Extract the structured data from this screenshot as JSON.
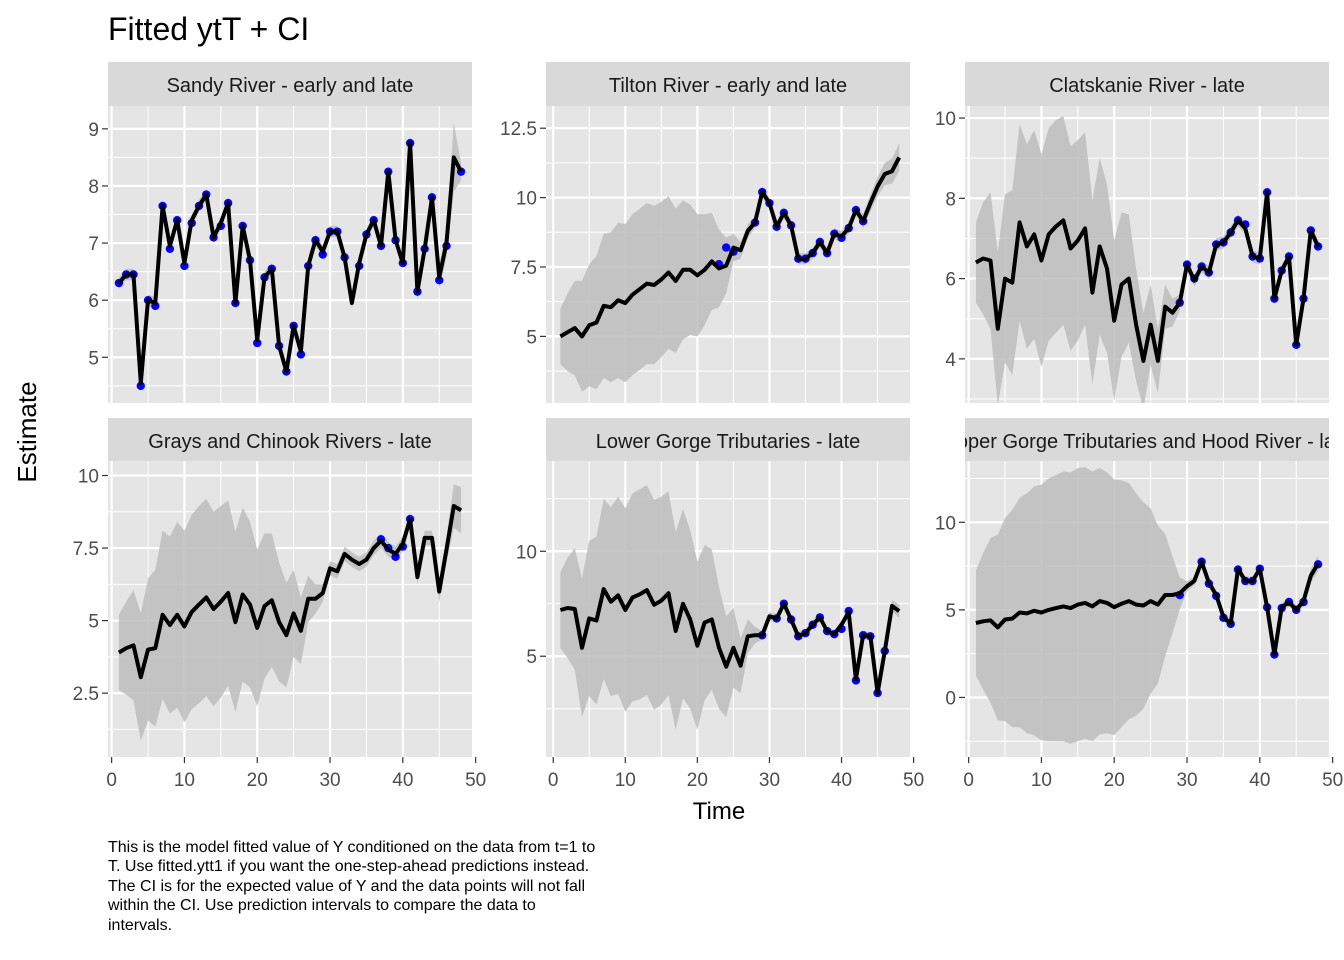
{
  "chart_data": {
    "type": "line",
    "title": "Fitted ytT + CI",
    "xlabel": "Time",
    "ylabel": "Estimate",
    "colors": {
      "fit_line": "#000000",
      "data_points": "#0000ff",
      "ci_ribbon": "#bdbdbd",
      "panel_bg": "#e5e5e5",
      "strip_bg": "#d9d9d9",
      "grid": "#ffffff"
    },
    "x_ticks": [
      0,
      10,
      20,
      30,
      40,
      50
    ],
    "panels": [
      {
        "strip": "Sandy River - early and late",
        "xlim": [
          -0.5,
          49.5
        ],
        "ylim": [
          4.2,
          9.4
        ],
        "y_ticks": [
          5,
          6,
          7,
          8,
          9
        ],
        "fit": [
          6.3,
          6.45,
          6.45,
          4.55,
          6.0,
          5.95,
          7.65,
          6.95,
          7.4,
          6.65,
          7.4,
          7.65,
          7.85,
          7.1,
          7.35,
          7.7,
          5.95,
          7.3,
          6.7,
          5.3,
          6.4,
          6.55,
          5.2,
          4.75,
          5.55,
          5.1,
          6.6,
          7.05,
          6.85,
          7.2,
          7.2,
          6.75,
          5.95,
          6.65,
          7.15,
          7.4,
          6.95,
          8.25,
          7.05,
          6.65,
          8.75,
          6.15,
          6.9,
          7.8,
          6.4,
          7.0,
          8.5,
          8.25
        ],
        "ci_half": [
          0.1,
          0.1,
          0.1,
          0.1,
          0.1,
          0.1,
          0.1,
          0.1,
          0.1,
          0.1,
          0.1,
          0.1,
          0.1,
          0.1,
          0.1,
          0.1,
          0.1,
          0.1,
          0.1,
          0.1,
          0.1,
          0.1,
          0.1,
          0.1,
          0.1,
          0.1,
          0.1,
          0.1,
          0.1,
          0.1,
          0.1,
          0.1,
          0.1,
          0.1,
          0.1,
          0.1,
          0.1,
          0.1,
          0.1,
          0.1,
          0.15,
          0.15,
          0.15,
          0.15,
          0.2,
          0.25,
          0.6,
          0.15
        ],
        "points": [
          [
            1,
            6.3
          ],
          [
            2,
            6.45
          ],
          [
            3,
            6.45
          ],
          [
            4,
            4.5
          ],
          [
            5,
            6.0
          ],
          [
            6,
            5.9
          ],
          [
            7,
            7.65
          ],
          [
            8,
            6.9
          ],
          [
            9,
            7.4
          ],
          [
            10,
            6.6
          ],
          [
            11,
            7.35
          ],
          [
            12,
            7.65
          ],
          [
            13,
            7.85
          ],
          [
            14,
            7.1
          ],
          [
            15,
            7.3
          ],
          [
            16,
            7.7
          ],
          [
            17,
            5.95
          ],
          [
            18,
            7.3
          ],
          [
            19,
            6.7
          ],
          [
            20,
            5.25
          ],
          [
            21,
            6.4
          ],
          [
            22,
            6.55
          ],
          [
            23,
            5.2
          ],
          [
            24,
            4.75
          ],
          [
            25,
            5.55
          ],
          [
            26,
            5.05
          ],
          [
            27,
            6.6
          ],
          [
            28,
            7.05
          ],
          [
            29,
            6.8
          ],
          [
            30,
            7.2
          ],
          [
            31,
            7.2
          ],
          [
            32,
            6.75
          ],
          [
            34,
            6.6
          ],
          [
            35,
            7.15
          ],
          [
            36,
            7.4
          ],
          [
            37,
            6.95
          ],
          [
            38,
            8.25
          ],
          [
            39,
            7.05
          ],
          [
            40,
            6.65
          ],
          [
            41,
            8.75
          ],
          [
            42,
            6.15
          ],
          [
            43,
            6.9
          ],
          [
            44,
            7.8
          ],
          [
            45,
            6.35
          ],
          [
            46,
            6.95
          ],
          [
            48,
            8.25
          ]
        ]
      },
      {
        "strip": "Tilton River - early and late",
        "xlim": [
          -1,
          49.5
        ],
        "ylim": [
          2.6,
          13.3
        ],
        "y_ticks": [
          5.0,
          7.5,
          10.0,
          12.5
        ],
        "fit": [
          5.0,
          5.15,
          5.3,
          5.0,
          5.4,
          5.5,
          6.1,
          6.05,
          6.3,
          6.2,
          6.5,
          6.7,
          6.9,
          6.85,
          7.05,
          7.3,
          7.0,
          7.4,
          7.4,
          7.2,
          7.4,
          7.7,
          7.45,
          7.55,
          8.2,
          8.1,
          8.8,
          9.1,
          10.2,
          9.8,
          8.95,
          9.45,
          9.0,
          7.8,
          7.8,
          8.0,
          8.4,
          8.0,
          8.7,
          8.6,
          8.9,
          9.55,
          9.15,
          9.8,
          10.4,
          10.85,
          10.95,
          11.45
        ],
        "ci_half": [
          1.0,
          1.4,
          1.7,
          2.0,
          2.2,
          2.4,
          2.6,
          2.7,
          2.8,
          2.85,
          2.9,
          2.9,
          2.9,
          2.85,
          2.8,
          2.75,
          2.6,
          2.5,
          2.35,
          2.2,
          2.0,
          1.75,
          1.4,
          1.0,
          0.5,
          0.3,
          0.25,
          0.2,
          0.2,
          0.2,
          0.2,
          0.2,
          0.2,
          0.2,
          0.2,
          0.2,
          0.2,
          0.2,
          0.2,
          0.2,
          0.2,
          0.2,
          0.25,
          0.3,
          0.35,
          0.4,
          0.45,
          0.5
        ],
        "points": [
          [
            23,
            7.6
          ],
          [
            24,
            8.2
          ],
          [
            25,
            8.05
          ],
          [
            28,
            9.1
          ],
          [
            29,
            10.2
          ],
          [
            30,
            9.8
          ],
          [
            31,
            8.95
          ],
          [
            32,
            9.45
          ],
          [
            33,
            9.0
          ],
          [
            34,
            7.8
          ],
          [
            35,
            7.8
          ],
          [
            36,
            8.0
          ],
          [
            37,
            8.4
          ],
          [
            38,
            8.0
          ],
          [
            39,
            8.7
          ],
          [
            40,
            8.55
          ],
          [
            41,
            8.9
          ],
          [
            42,
            9.55
          ],
          [
            43,
            9.15
          ]
        ]
      },
      {
        "strip": "Clatskanie River - late",
        "xlim": [
          -0.5,
          49.5
        ],
        "ylim": [
          2.9,
          10.3
        ],
        "y_ticks": [
          4,
          6,
          8,
          10
        ],
        "fit": [
          6.4,
          6.5,
          6.45,
          4.75,
          6.0,
          5.9,
          7.4,
          6.8,
          7.1,
          6.45,
          7.1,
          7.3,
          7.45,
          6.75,
          6.95,
          7.25,
          5.65,
          6.8,
          6.25,
          4.95,
          5.85,
          6.0,
          4.85,
          3.95,
          4.85,
          3.95,
          5.3,
          5.15,
          5.4,
          6.35,
          5.95,
          6.3,
          6.15,
          6.85,
          6.9,
          7.15,
          7.45,
          7.25,
          6.55,
          6.5,
          8.15,
          5.5,
          6.2,
          6.55,
          4.35,
          5.5,
          7.2,
          6.8
        ],
        "ci_half": [
          1.0,
          1.4,
          1.7,
          1.9,
          2.1,
          2.3,
          2.45,
          2.55,
          2.6,
          2.65,
          2.65,
          2.65,
          2.6,
          2.55,
          2.5,
          2.4,
          2.3,
          2.2,
          2.1,
          2.0,
          1.8,
          1.6,
          1.4,
          1.2,
          1.0,
          0.8,
          0.55,
          0.35,
          0.2,
          0.15,
          0.15,
          0.15,
          0.15,
          0.15,
          0.15,
          0.15,
          0.15,
          0.15,
          0.15,
          0.15,
          0.15,
          0.15,
          0.15,
          0.15,
          0.15,
          0.15,
          0.15,
          0.15
        ],
        "points": [
          [
            29,
            5.4
          ],
          [
            30,
            6.35
          ],
          [
            31,
            6.0
          ],
          [
            32,
            6.3
          ],
          [
            33,
            6.15
          ],
          [
            34,
            6.85
          ],
          [
            35,
            6.9
          ],
          [
            36,
            7.15
          ],
          [
            37,
            7.45
          ],
          [
            38,
            7.35
          ],
          [
            39,
            6.55
          ],
          [
            40,
            6.5
          ],
          [
            41,
            8.15
          ],
          [
            42,
            5.5
          ],
          [
            43,
            6.2
          ],
          [
            44,
            6.55
          ],
          [
            45,
            4.35
          ],
          [
            46,
            5.5
          ],
          [
            47,
            7.2
          ],
          [
            48,
            6.8
          ]
        ]
      },
      {
        "strip": "Grays and Chinook Rivers - late",
        "xlim": [
          -0.5,
          49.5
        ],
        "ylim": [
          0.3,
          10.5
        ],
        "y_ticks": [
          2.5,
          5.0,
          7.5,
          10.0
        ],
        "fit": [
          3.9,
          4.05,
          4.15,
          3.05,
          4.0,
          4.05,
          5.2,
          4.85,
          5.2,
          4.8,
          5.3,
          5.55,
          5.8,
          5.4,
          5.65,
          5.95,
          4.95,
          5.9,
          5.55,
          4.75,
          5.5,
          5.7,
          4.95,
          4.5,
          5.25,
          4.65,
          5.75,
          5.75,
          5.95,
          6.8,
          6.7,
          7.3,
          7.1,
          6.95,
          7.1,
          7.5,
          7.75,
          7.45,
          7.3,
          7.65,
          8.5,
          6.5,
          7.85,
          7.85,
          6.0,
          7.45,
          8.95,
          8.8
        ],
        "ci_half": [
          1.3,
          1.6,
          1.9,
          2.2,
          2.45,
          2.7,
          2.9,
          3.05,
          3.2,
          3.3,
          3.35,
          3.4,
          3.4,
          3.35,
          3.3,
          3.2,
          3.1,
          3.0,
          2.85,
          2.7,
          2.5,
          2.3,
          2.05,
          1.8,
          1.5,
          1.15,
          0.8,
          0.5,
          0.3,
          0.25,
          0.25,
          0.25,
          0.25,
          0.25,
          0.25,
          0.25,
          0.25,
          0.25,
          0.25,
          0.25,
          0.25,
          0.25,
          0.25,
          0.25,
          0.35,
          0.45,
          0.75,
          0.8
        ],
        "points": [
          [
            37,
            7.8
          ],
          [
            38,
            7.5
          ],
          [
            39,
            7.2
          ],
          [
            40,
            7.55
          ],
          [
            41,
            8.5
          ]
        ]
      },
      {
        "strip": "Lower Gorge Tributaries - late",
        "xlim": [
          -1,
          49.5
        ],
        "ylim": [
          0.2,
          14.3
        ],
        "y_ticks": [
          5,
          10
        ],
        "fit": [
          7.2,
          7.3,
          7.25,
          5.4,
          6.8,
          6.7,
          8.2,
          7.6,
          7.9,
          7.2,
          7.8,
          7.95,
          8.15,
          7.45,
          7.65,
          8.0,
          6.2,
          7.5,
          6.75,
          5.5,
          6.6,
          6.75,
          5.4,
          4.5,
          5.4,
          4.55,
          5.95,
          6.0,
          6.0,
          6.9,
          6.8,
          7.5,
          6.75,
          5.95,
          6.1,
          6.5,
          6.85,
          6.2,
          6.05,
          6.5,
          7.1,
          3.9,
          6.0,
          5.95,
          3.25,
          5.25,
          7.4,
          7.15
        ],
        "ci_half": [
          1.8,
          2.4,
          2.9,
          3.3,
          3.7,
          4.0,
          4.3,
          4.5,
          4.7,
          4.85,
          4.95,
          5.0,
          5.0,
          5.0,
          4.95,
          4.85,
          4.7,
          4.5,
          4.25,
          4.0,
          3.7,
          3.35,
          2.9,
          2.4,
          1.9,
          1.3,
          0.8,
          0.4,
          0.2,
          0.2,
          0.2,
          0.2,
          0.2,
          0.2,
          0.2,
          0.2,
          0.2,
          0.2,
          0.2,
          0.2,
          0.2,
          0.2,
          0.2,
          0.2,
          0.2,
          0.2,
          0.3,
          0.3
        ],
        "points": [
          [
            29,
            6.0
          ],
          [
            31,
            6.8
          ],
          [
            32,
            7.5
          ],
          [
            33,
            6.75
          ],
          [
            34,
            5.95
          ],
          [
            35,
            6.1
          ],
          [
            36,
            6.5
          ],
          [
            37,
            6.85
          ],
          [
            38,
            6.2
          ],
          [
            39,
            6.05
          ],
          [
            40,
            6.3
          ],
          [
            41,
            7.15
          ],
          [
            42,
            3.85
          ],
          [
            43,
            6.0
          ],
          [
            44,
            5.95
          ],
          [
            45,
            3.25
          ],
          [
            46,
            5.25
          ]
        ]
      },
      {
        "strip": "Upper Gorge Tributaries and Hood River - late",
        "xlim": [
          -0.5,
          49.5
        ],
        "ylim": [
          -3.4,
          13.5
        ],
        "y_ticks": [
          0,
          5,
          10
        ],
        "fit": [
          4.25,
          4.35,
          4.4,
          4.0,
          4.45,
          4.5,
          4.85,
          4.8,
          4.95,
          4.85,
          5.0,
          5.1,
          5.2,
          5.1,
          5.3,
          5.4,
          5.2,
          5.5,
          5.4,
          5.15,
          5.35,
          5.5,
          5.3,
          5.25,
          5.5,
          5.3,
          5.85,
          5.85,
          5.95,
          6.35,
          6.65,
          7.75,
          6.55,
          5.85,
          4.6,
          4.2,
          7.35,
          6.65,
          6.65,
          7.35,
          5.15,
          2.45,
          5.15,
          5.45,
          5.0,
          5.5,
          6.95,
          7.65
        ],
        "ci_half": [
          3.0,
          3.9,
          4.7,
          5.3,
          5.8,
          6.2,
          6.55,
          6.85,
          7.1,
          7.3,
          7.5,
          7.6,
          7.7,
          7.75,
          7.8,
          7.75,
          7.7,
          7.6,
          7.45,
          7.3,
          7.05,
          6.75,
          6.35,
          5.9,
          5.3,
          4.5,
          3.5,
          2.2,
          0.9,
          0.3,
          0.25,
          0.25,
          0.25,
          0.25,
          0.25,
          0.25,
          0.25,
          0.25,
          0.25,
          0.25,
          0.25,
          0.25,
          0.25,
          0.25,
          0.25,
          0.3,
          0.4,
          0.45
        ],
        "points": [
          [
            29,
            5.85
          ],
          [
            32,
            7.75
          ],
          [
            33,
            6.5
          ],
          [
            34,
            5.8
          ],
          [
            35,
            4.55
          ],
          [
            36,
            4.2
          ],
          [
            37,
            7.3
          ],
          [
            38,
            6.65
          ],
          [
            39,
            6.65
          ],
          [
            40,
            7.35
          ],
          [
            41,
            5.15
          ],
          [
            42,
            2.45
          ],
          [
            43,
            5.1
          ],
          [
            44,
            5.45
          ],
          [
            45,
            5.0
          ],
          [
            46,
            5.45
          ],
          [
            48,
            7.6
          ]
        ]
      }
    ]
  },
  "caption_lines": [
    "This is the model fitted value of Y conditioned on the data from t=1 to",
    "T. Use fitted.ytt1 if you want the one-step-ahead predictions instead.",
    "The CI is for the expected value of Y and the data points will not fall",
    "within the CI. Use prediction intervals to compare the data to",
    "intervals."
  ]
}
